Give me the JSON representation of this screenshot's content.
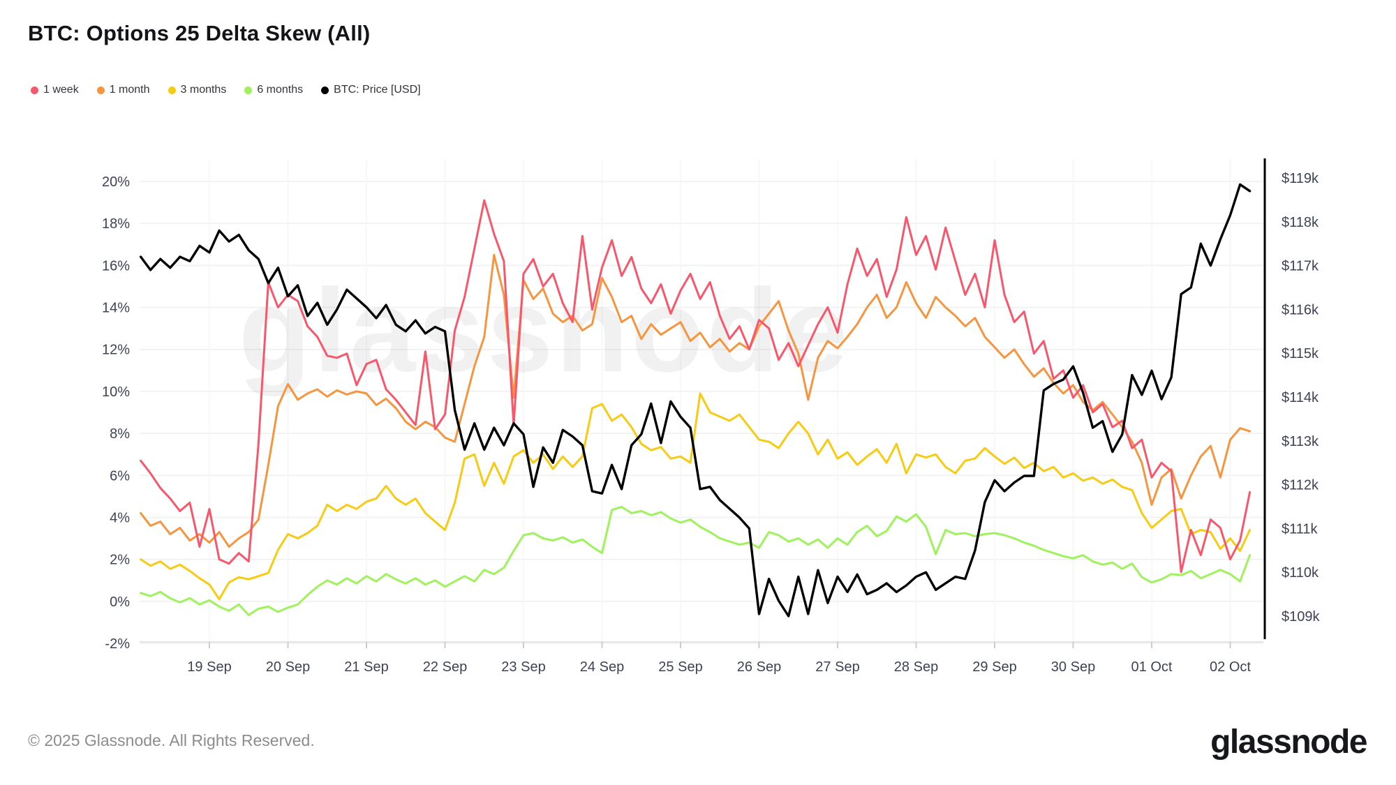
{
  "title": "BTC: Options 25 Delta Skew (All)",
  "watermark_text": "glassnode",
  "footer_copyright": "© 2025 Glassnode. All Rights Reserved.",
  "brand_wordmark": "glassnode",
  "colors": {
    "one_week": "#f9566b",
    "one_month": "#f6953e",
    "three_months": "#f8cb12",
    "six_months": "#9ef25b",
    "btc_price": "#000000",
    "grid": "#efefef",
    "axis_text": "#3d4254"
  },
  "chart_data": {
    "type": "line",
    "title": "BTC: Options 25 Delta Skew (All)",
    "x_unit": "days, 1 = 19 Sep",
    "x_start": 0.125,
    "x_step": 0.125,
    "x_points": 114,
    "x_tick_values": [
      1,
      2,
      3,
      4,
      5,
      6,
      7,
      8,
      9,
      10,
      11,
      12,
      13,
      14
    ],
    "x_tick_labels": [
      "19 Sep",
      "20 Sep",
      "21 Sep",
      "22 Sep",
      "23 Sep",
      "24 Sep",
      "25 Sep",
      "26 Sep",
      "27 Sep",
      "28 Sep",
      "29 Sep",
      "30 Sep",
      "01 Oct",
      "02 Oct"
    ],
    "left_axis": {
      "unit": "%",
      "tick_values": [
        20,
        18,
        16,
        14,
        12,
        10,
        8,
        6,
        4,
        2,
        0,
        -2
      ],
      "tick_labels": [
        "20%",
        "18%",
        "16%",
        "14%",
        "12%",
        "10%",
        "8%",
        "6%",
        "4%",
        "2%",
        "0%",
        "-2%"
      ],
      "range": [
        -2,
        20
      ]
    },
    "right_axis": {
      "unit": "USD",
      "tick_values": [
        119,
        118,
        117,
        116,
        115,
        114,
        113,
        112,
        111,
        110,
        109
      ],
      "tick_labels": [
        "$119k",
        "$118k",
        "$117k",
        "$116k",
        "$115k",
        "$114k",
        "$113k",
        "$112k",
        "$111k",
        "$110k",
        "$109k"
      ],
      "range": [
        109,
        119
      ]
    },
    "series": [
      {
        "name": "6 months",
        "color": "#9ef25b",
        "axis": "left",
        "values": [
          0.4,
          0.25,
          0.45,
          0.15,
          -0.05,
          0.15,
          -0.15,
          0.05,
          -0.25,
          -0.45,
          -0.15,
          -0.65,
          -0.35,
          -0.25,
          -0.5,
          -0.3,
          -0.15,
          0.3,
          0.7,
          1.0,
          0.8,
          1.1,
          0.85,
          1.2,
          0.95,
          1.3,
          1.05,
          0.85,
          1.1,
          0.8,
          1.0,
          0.7,
          0.95,
          1.2,
          0.95,
          1.5,
          1.3,
          1.6,
          2.4,
          3.15,
          3.25,
          3.0,
          2.9,
          3.05,
          2.8,
          2.95,
          2.6,
          2.3,
          4.35,
          4.5,
          4.2,
          4.3,
          4.1,
          4.25,
          3.95,
          3.75,
          3.9,
          3.55,
          3.3,
          3.0,
          2.85,
          2.7,
          2.8,
          2.55,
          3.3,
          3.15,
          2.85,
          3.0,
          2.7,
          2.95,
          2.55,
          3.0,
          2.7,
          3.3,
          3.6,
          3.1,
          3.35,
          4.05,
          3.8,
          4.15,
          3.55,
          2.25,
          3.4,
          3.2,
          3.25,
          3.1,
          3.2,
          3.25,
          3.15,
          3.0,
          2.8,
          2.65,
          2.45,
          2.3,
          2.15,
          2.05,
          2.2,
          1.9,
          1.75,
          1.85,
          1.55,
          1.8,
          1.15,
          0.9,
          1.05,
          1.3,
          1.25,
          1.45,
          1.1,
          1.3,
          1.5,
          1.3,
          0.95,
          2.2
        ]
      },
      {
        "name": "3 months",
        "color": "#f8cb12",
        "axis": "left",
        "values": [
          2.0,
          1.7,
          1.9,
          1.55,
          1.75,
          1.45,
          1.1,
          0.8,
          0.1,
          0.9,
          1.15,
          1.05,
          1.2,
          1.35,
          2.45,
          3.2,
          3.0,
          3.25,
          3.6,
          4.6,
          4.3,
          4.6,
          4.4,
          4.75,
          4.9,
          5.5,
          4.9,
          4.6,
          4.9,
          4.2,
          3.8,
          3.4,
          4.7,
          6.8,
          7.0,
          5.5,
          6.6,
          5.6,
          6.9,
          7.2,
          6.6,
          7.0,
          6.3,
          6.9,
          6.4,
          6.9,
          9.2,
          9.4,
          8.6,
          8.9,
          8.3,
          7.5,
          7.2,
          7.35,
          6.8,
          6.9,
          6.6,
          9.9,
          9.0,
          8.8,
          8.6,
          8.9,
          8.3,
          7.7,
          7.6,
          7.3,
          8.0,
          8.55,
          8.0,
          7.0,
          7.7,
          6.8,
          7.1,
          6.5,
          6.9,
          7.25,
          6.6,
          7.5,
          6.1,
          7.0,
          6.85,
          7.0,
          6.4,
          6.1,
          6.7,
          6.8,
          7.3,
          6.9,
          6.55,
          6.85,
          6.35,
          6.6,
          6.2,
          6.4,
          5.9,
          6.1,
          5.75,
          5.9,
          5.6,
          5.8,
          5.45,
          5.3,
          4.2,
          3.5,
          3.9,
          4.3,
          4.4,
          3.2,
          3.4,
          3.3,
          2.5,
          3.0,
          2.4,
          3.4
        ]
      },
      {
        "name": "1 month",
        "color": "#f6953e",
        "axis": "left",
        "values": [
          4.2,
          3.6,
          3.8,
          3.2,
          3.5,
          2.9,
          3.2,
          2.8,
          3.3,
          2.6,
          3.0,
          3.3,
          3.9,
          6.5,
          9.3,
          10.35,
          9.6,
          9.9,
          10.1,
          9.75,
          10.05,
          9.85,
          10.0,
          9.9,
          9.35,
          9.65,
          9.2,
          8.55,
          8.2,
          8.55,
          8.3,
          7.8,
          7.6,
          9.4,
          11.2,
          12.6,
          16.5,
          14.6,
          9.7,
          15.3,
          14.4,
          14.9,
          13.7,
          13.3,
          13.6,
          12.9,
          13.2,
          15.4,
          14.5,
          13.3,
          13.6,
          12.5,
          13.2,
          12.7,
          13.0,
          13.3,
          12.4,
          12.8,
          12.1,
          12.5,
          11.9,
          12.3,
          12.0,
          13.1,
          13.7,
          14.3,
          12.9,
          11.8,
          9.6,
          11.6,
          12.4,
          12.05,
          12.6,
          13.2,
          14.0,
          14.6,
          13.5,
          14.0,
          15.2,
          14.2,
          13.5,
          14.5,
          14.0,
          13.6,
          13.1,
          13.5,
          12.6,
          12.1,
          11.6,
          12.0,
          11.3,
          10.7,
          11.1,
          10.4,
          9.9,
          10.3,
          9.5,
          9.1,
          9.5,
          8.9,
          8.3,
          7.6,
          6.6,
          4.6,
          5.9,
          6.3,
          4.9,
          6.0,
          6.9,
          7.4,
          5.9,
          7.7,
          8.25,
          8.1
        ]
      },
      {
        "name": "1 week",
        "color": "#f9566b",
        "axis": "left",
        "values": [
          6.7,
          6.1,
          5.4,
          4.9,
          4.3,
          4.7,
          2.6,
          4.4,
          2.0,
          1.8,
          2.3,
          1.9,
          7.5,
          15.2,
          14.0,
          14.6,
          14.3,
          13.1,
          12.6,
          11.7,
          11.6,
          11.8,
          10.3,
          11.3,
          11.5,
          10.1,
          9.6,
          9.0,
          8.4,
          11.9,
          8.2,
          8.9,
          12.9,
          14.5,
          16.8,
          19.1,
          17.5,
          16.2,
          8.4,
          15.6,
          16.3,
          15.0,
          15.6,
          14.2,
          13.3,
          17.4,
          13.9,
          15.9,
          17.2,
          15.5,
          16.4,
          14.9,
          14.2,
          15.1,
          13.7,
          14.8,
          15.6,
          14.4,
          15.2,
          13.6,
          12.5,
          13.1,
          12.0,
          13.4,
          13.0,
          11.5,
          12.3,
          11.2,
          12.2,
          13.2,
          14.0,
          12.8,
          15.1,
          16.8,
          15.5,
          16.3,
          14.5,
          15.8,
          18.3,
          16.5,
          17.4,
          15.8,
          17.8,
          16.2,
          14.6,
          15.6,
          14.0,
          17.2,
          14.6,
          13.3,
          13.8,
          11.8,
          12.4,
          10.6,
          11.0,
          9.7,
          10.3,
          9.0,
          9.4,
          8.3,
          8.6,
          7.3,
          7.7,
          5.9,
          6.6,
          6.2,
          1.4,
          3.4,
          2.2,
          3.9,
          3.5,
          2.0,
          2.9,
          5.2
        ]
      },
      {
        "name": "BTC: Price [USD]",
        "color": "#000000",
        "axis": "right",
        "values": [
          117.2,
          116.9,
          117.15,
          116.95,
          117.2,
          117.1,
          117.45,
          117.3,
          117.8,
          117.55,
          117.7,
          117.35,
          117.15,
          116.6,
          116.95,
          116.3,
          116.55,
          115.85,
          116.15,
          115.65,
          116.0,
          116.45,
          116.25,
          116.05,
          115.8,
          116.1,
          115.65,
          115.5,
          115.75,
          115.45,
          115.6,
          115.5,
          113.7,
          112.8,
          113.4,
          112.8,
          113.3,
          112.9,
          113.4,
          113.15,
          111.95,
          112.85,
          112.5,
          113.25,
          113.1,
          112.9,
          111.85,
          111.8,
          112.45,
          111.9,
          112.9,
          113.15,
          113.85,
          112.95,
          113.9,
          113.55,
          113.3,
          111.9,
          111.95,
          111.65,
          111.45,
          111.25,
          111.0,
          109.05,
          109.85,
          109.35,
          109.0,
          109.9,
          109.05,
          110.05,
          109.3,
          109.9,
          109.55,
          109.95,
          109.5,
          109.6,
          109.75,
          109.55,
          109.7,
          109.9,
          110.0,
          109.6,
          109.75,
          109.9,
          109.85,
          110.5,
          111.6,
          112.1,
          111.85,
          112.05,
          112.2,
          112.2,
          114.15,
          114.3,
          114.4,
          114.7,
          114.1,
          113.3,
          113.45,
          112.75,
          113.15,
          114.5,
          114.05,
          114.6,
          113.95,
          114.45,
          116.35,
          116.5,
          117.5,
          117.0,
          117.6,
          118.15,
          118.85,
          118.7
        ]
      }
    ]
  }
}
